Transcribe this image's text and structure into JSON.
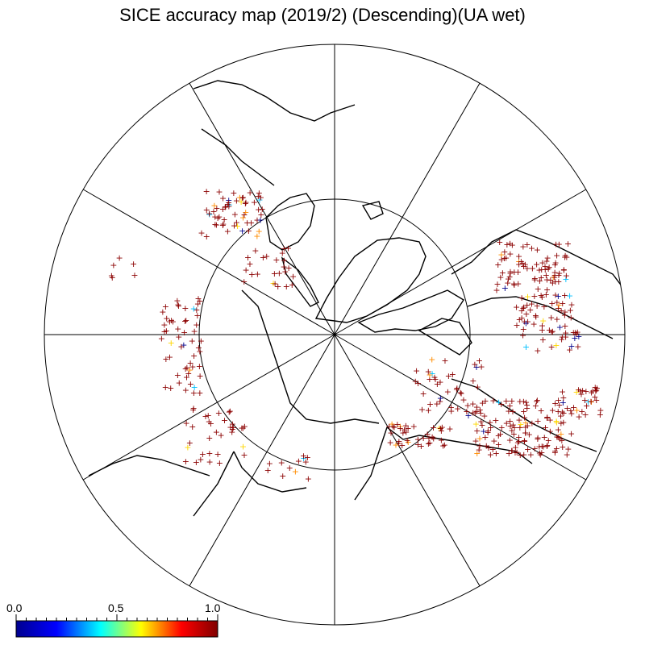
{
  "title": "SICE accuracy map (2019/2) (Descending)(UA wet)",
  "colorbar": {
    "min_label": "0.0",
    "mid_label": "0.5",
    "max_label": "1.0",
    "range": [
      0.0,
      1.0
    ],
    "colors": [
      "#00008f",
      "#0000ff",
      "#00ffff",
      "#ffff00",
      "#ff0000",
      "#800000"
    ]
  },
  "map": {
    "projection": "polar-stereographic-north",
    "graticule_lines": 12,
    "inner_circle": true
  },
  "markers": {
    "symbol": "+",
    "dominant_color": "#8b0000",
    "minor_colors": [
      "#00008b",
      "#ffd700",
      "#00c0ff",
      "#ff8c00"
    ]
  }
}
